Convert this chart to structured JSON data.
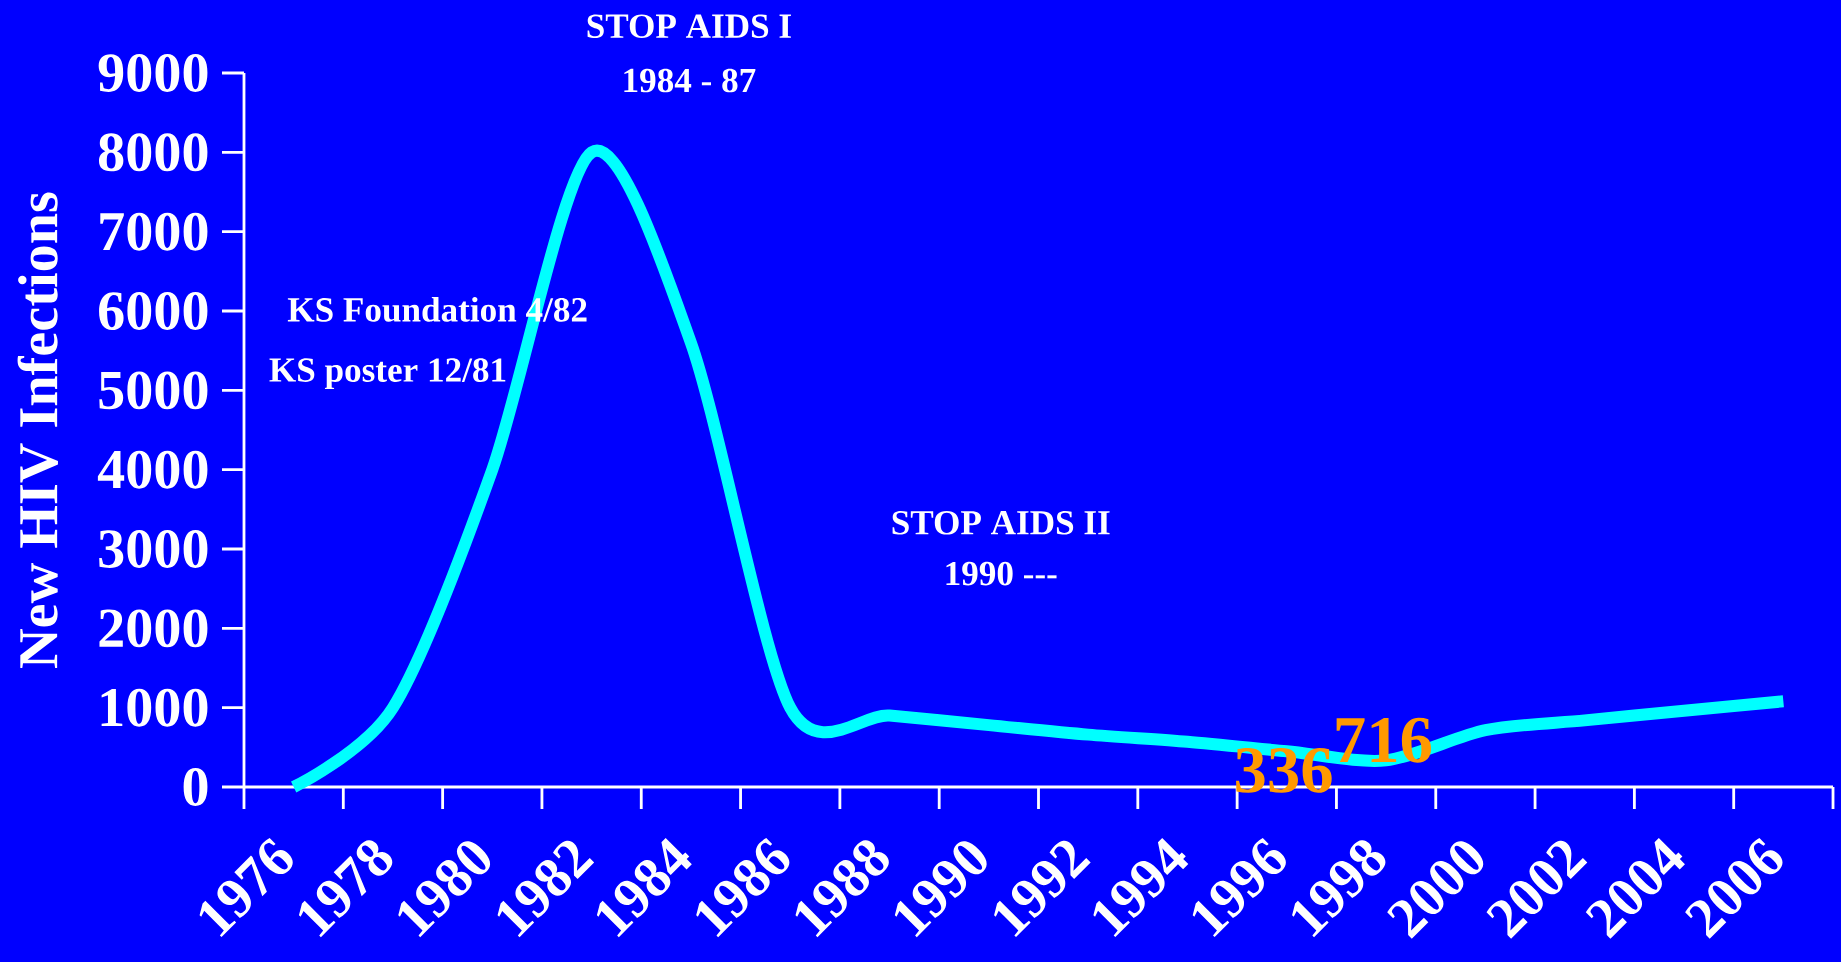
{
  "chart_data": {
    "type": "line",
    "ylabel": "New HIV Infections",
    "categories": [
      "1976",
      "1978",
      "1980",
      "1982",
      "1984",
      "1986",
      "1988",
      "1990",
      "1992",
      "1994",
      "1996",
      "1998",
      "2000",
      "2002",
      "2004",
      "2006"
    ],
    "series": [
      {
        "color": "#00ffff",
        "values": [
          0,
          1000,
          4000,
          8000,
          5600,
          1000,
          900,
          780,
          660,
          570,
          450,
          336,
          716,
          840,
          960,
          1080
        ],
        "value_labels": [
          null,
          null,
          null,
          null,
          null,
          null,
          null,
          null,
          null,
          null,
          null,
          "336",
          "716",
          null,
          null,
          null
        ]
      }
    ],
    "ylim": [
      0,
      9000
    ],
    "yticks": [
      0,
      1000,
      2000,
      3000,
      4000,
      5000,
      6000,
      7000,
      8000,
      9000
    ],
    "annotations": [
      "STOP AIDS I",
      "1984 - 87",
      "KS Foundation 4/82",
      "KS poster 12/81",
      "STOP AIDS II",
      "1990 ---"
    ],
    "grid": false
  }
}
